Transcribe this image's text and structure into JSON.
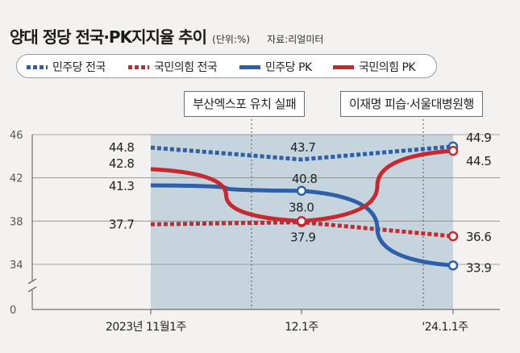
{
  "header": {
    "title": "양대 정당 전국·PK지지율 추이",
    "unit": "(단위:%)",
    "source": "자료:리얼미터"
  },
  "legend": [
    {
      "label": "민주당 전국",
      "style": "dotted",
      "color": "#2e5fa8"
    },
    {
      "label": "국민의힘 전국",
      "style": "dotted",
      "color": "#c62a2f"
    },
    {
      "label": "민주당 PK",
      "style": "solid",
      "color": "#2e5fa8"
    },
    {
      "label": "국민의힘 PK",
      "style": "solid",
      "color": "#c62a2f"
    }
  ],
  "annotations": {
    "event1": "부산엑스포 유치 실패",
    "event2": "이재명 피습·서울대병원행"
  },
  "chart_data": {
    "type": "line",
    "title": "양대 정당 전국·PK지지율 추이",
    "unit": "%",
    "categories": [
      "2023년 11월1주",
      "12.1주",
      "'24.1.1주"
    ],
    "y_ticks": [
      "46",
      "42",
      "38",
      "34",
      "0"
    ],
    "y_axis_break": true,
    "ylim": [
      32,
      46
    ],
    "series": [
      {
        "name": "민주당 전국",
        "style": "dotted",
        "color": "#2e5fa8",
        "values": [
          44.8,
          43.7,
          44.9
        ],
        "labels": [
          "44.8",
          "43.7",
          "44.9"
        ]
      },
      {
        "name": "국민의힘 전국",
        "style": "dotted",
        "color": "#c62a2f",
        "values": [
          37.7,
          37.9,
          36.6
        ],
        "labels": [
          "37.7",
          "37.9",
          "36.6"
        ]
      },
      {
        "name": "민주당 PK",
        "style": "solid",
        "color": "#2e5fa8",
        "values": [
          41.3,
          40.8,
          33.9
        ],
        "labels": [
          "41.3",
          "40.8",
          "33.9"
        ]
      },
      {
        "name": "국민의힘 PK",
        "style": "solid",
        "color": "#c62a2f",
        "values": [
          42.8,
          38.0,
          44.5
        ],
        "labels": [
          "42.8",
          "38.0",
          "44.5"
        ]
      }
    ]
  }
}
